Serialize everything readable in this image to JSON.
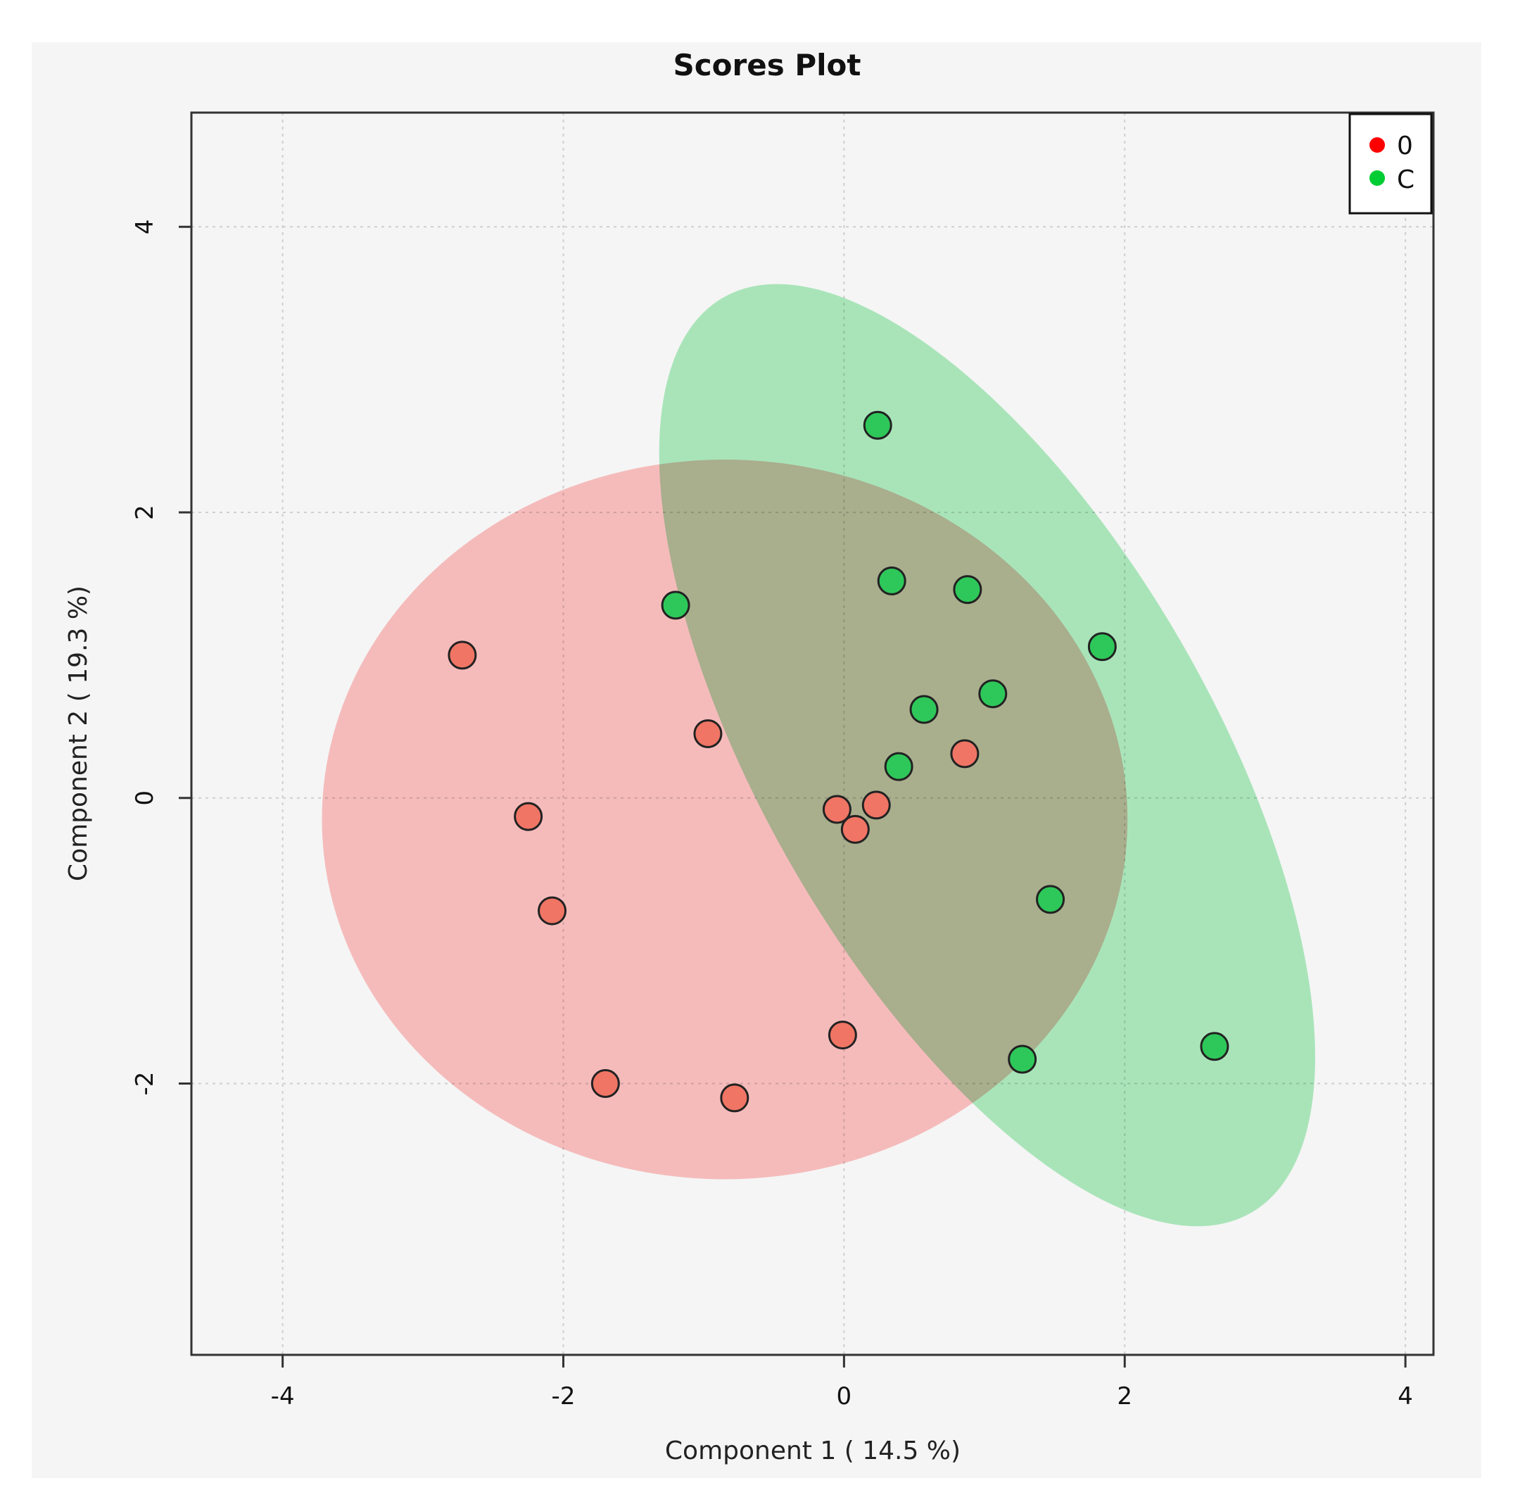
{
  "chart_data": {
    "type": "scatter",
    "title": "Scores Plot",
    "xlabel": "Component 1 ( 14.5 %)",
    "ylabel": "Component 2 ( 19.3 %)",
    "xlim": [
      -4.65,
      4.2
    ],
    "ylim": [
      -3.9,
      4.8
    ],
    "xticks": [
      -4,
      -2,
      0,
      2,
      4
    ],
    "yticks": [
      -2,
      0,
      2,
      4
    ],
    "grid": true,
    "legend_position": "top-right",
    "series": [
      {
        "name": "0",
        "color": "#ff0000",
        "point_color": "#f07565",
        "ellipse_color": "#ffaaaa",
        "points": [
          {
            "x": -2.72,
            "y": 1.0
          },
          {
            "x": -0.97,
            "y": 0.45
          },
          {
            "x": -2.25,
            "y": -0.13
          },
          {
            "x": -2.08,
            "y": -0.79
          },
          {
            "x": -0.05,
            "y": -0.08
          },
          {
            "x": 0.23,
            "y": -0.05
          },
          {
            "x": 0.08,
            "y": -0.22
          },
          {
            "x": 0.86,
            "y": 0.31
          },
          {
            "x": -0.01,
            "y": -1.66
          },
          {
            "x": -1.7,
            "y": -2.0
          },
          {
            "x": -0.78,
            "y": -2.1
          }
        ],
        "ellipse": {
          "cx": -0.85,
          "cy": -0.15,
          "rx": 2.87,
          "ry": 2.52,
          "angle": 0
        }
      },
      {
        "name": "C",
        "color": "#00cc33",
        "point_color": "#2ec85a",
        "ellipse_color": "#8ee7a6",
        "points": [
          {
            "x": 0.24,
            "y": 2.61
          },
          {
            "x": -1.2,
            "y": 1.35
          },
          {
            "x": 0.34,
            "y": 1.52
          },
          {
            "x": 0.88,
            "y": 1.46
          },
          {
            "x": 1.84,
            "y": 1.06
          },
          {
            "x": 1.06,
            "y": 0.73
          },
          {
            "x": 0.57,
            "y": 0.62
          },
          {
            "x": 0.39,
            "y": 0.22
          },
          {
            "x": 1.47,
            "y": -0.71
          },
          {
            "x": 1.27,
            "y": -1.83
          },
          {
            "x": 2.64,
            "y": -1.74
          }
        ],
        "ellipse": {
          "cx": 1.02,
          "cy": 0.3,
          "rx": 1.6,
          "ry": 3.7,
          "angle": 30
        }
      }
    ]
  }
}
